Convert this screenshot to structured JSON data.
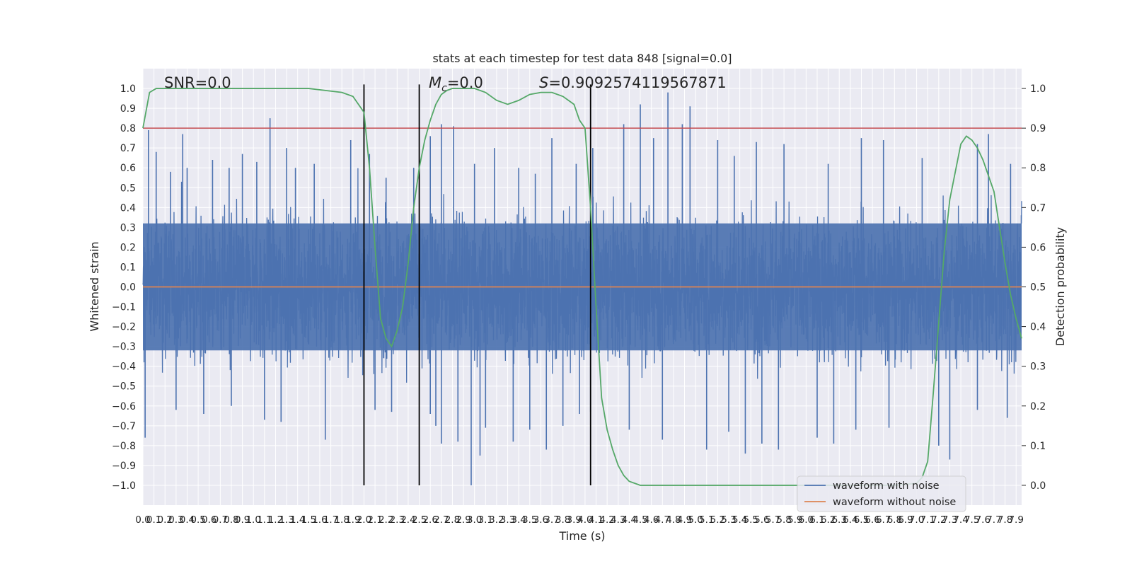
{
  "chart_data": {
    "type": "line",
    "title": "stats at each timestep for test data 848 [signal=0.0]",
    "xlabel": "Time (s)",
    "ylabel": "Whitened strain",
    "y2label": "Detection probability",
    "xlim": [
      0.0,
      7.95
    ],
    "ylim": [
      -1.1,
      1.1
    ],
    "y2lim": [
      -0.05,
      1.05
    ],
    "x_ticks": [
      "0.0",
      "0.1",
      "0.2",
      "0.3",
      "0.4",
      "0.5",
      "0.6",
      "0.7",
      "0.8",
      "0.9",
      "1.0",
      "1.1",
      "1.2",
      "1.3",
      "1.4",
      "1.5",
      "1.6",
      "1.7",
      "1.8",
      "1.9",
      "2.0",
      "2.1",
      "2.2",
      "2.3",
      "2.4",
      "2.5",
      "2.6",
      "2.7",
      "2.8",
      "2.9",
      "3.0",
      "3.1",
      "3.2",
      "3.3",
      "3.4",
      "3.5",
      "3.6",
      "3.7",
      "3.8",
      "3.9",
      "4.0",
      "4.1",
      "4.2",
      "4.3",
      "4.4",
      "4.5",
      "4.6",
      "4.7",
      "4.8",
      "4.9",
      "5.0",
      "5.1",
      "5.2",
      "5.3",
      "5.4",
      "5.5",
      "5.6",
      "5.7",
      "5.8",
      "5.9",
      "6.0",
      "6.1",
      "6.2",
      "6.3",
      "6.4",
      "6.5",
      "6.6",
      "6.7",
      "6.8",
      "6.9",
      "7.0",
      "7.1",
      "7.2",
      "7.3",
      "7.4",
      "7.5",
      "7.6",
      "7.7",
      "7.8",
      "7.9"
    ],
    "y_ticks": [
      "1.0",
      "0.9",
      "0.8",
      "0.7",
      "0.6",
      "0.5",
      "0.4",
      "0.3",
      "0.2",
      "0.1",
      "0.0",
      "−0.1",
      "−0.2",
      "−0.3",
      "−0.4",
      "−0.5",
      "−0.6",
      "−0.7",
      "−0.8",
      "−0.9",
      "−1.0"
    ],
    "y2_ticks": [
      "1.0",
      "0.9",
      "0.8",
      "0.7",
      "0.6",
      "0.5",
      "0.4",
      "0.3",
      "0.2",
      "0.1",
      "0.0"
    ],
    "annotations": {
      "snr": "SNR=0.0",
      "mc_symbol": "M",
      "mc_sub": "c",
      "mc_value": "=0.0",
      "s_symbol": "S",
      "s_value": "=0.9092574119567871"
    },
    "threshold": 0.9,
    "vlines": [
      2.0,
      2.5,
      4.05
    ],
    "series": [
      {
        "name": "waveform with noise",
        "color": "#4c72b0",
        "axis": "left",
        "summary": {
          "min": -1.0,
          "max": 0.98,
          "typical_range": [
            -0.45,
            0.45
          ]
        },
        "spikes_up": [
          [
            0.05,
            0.79
          ],
          [
            0.12,
            0.68
          ],
          [
            0.25,
            0.58
          ],
          [
            0.36,
            0.77
          ],
          [
            0.4,
            0.6
          ],
          [
            0.63,
            0.64
          ],
          [
            0.78,
            0.6
          ],
          [
            0.9,
            0.67
          ],
          [
            1.03,
            0.63
          ],
          [
            1.15,
            0.85
          ],
          [
            1.3,
            0.7
          ],
          [
            1.38,
            0.6
          ],
          [
            1.55,
            0.62
          ],
          [
            1.88,
            0.74
          ],
          [
            2.05,
            0.67
          ],
          [
            2.2,
            0.55
          ],
          [
            2.45,
            0.6
          ],
          [
            2.6,
            0.76
          ],
          [
            2.7,
            0.82
          ],
          [
            2.81,
            0.81
          ],
          [
            3.0,
            0.62
          ],
          [
            3.18,
            0.7
          ],
          [
            3.4,
            0.6
          ],
          [
            3.55,
            0.57
          ],
          [
            3.7,
            0.75
          ],
          [
            3.92,
            0.62
          ],
          [
            4.07,
            0.7
          ],
          [
            4.35,
            0.82
          ],
          [
            4.5,
            0.92
          ],
          [
            4.62,
            0.75
          ],
          [
            4.75,
            0.98
          ],
          [
            4.88,
            0.82
          ],
          [
            4.95,
            0.91
          ],
          [
            5.2,
            0.74
          ],
          [
            5.35,
            0.66
          ],
          [
            5.55,
            0.73
          ],
          [
            5.8,
            0.72
          ],
          [
            6.2,
            0.62
          ],
          [
            6.5,
            0.75
          ],
          [
            6.7,
            0.74
          ],
          [
            7.05,
            0.65
          ],
          [
            7.55,
            0.72
          ],
          [
            7.65,
            0.77
          ],
          [
            7.85,
            0.62
          ]
        ],
        "spikes_down": [
          [
            0.02,
            -0.76
          ],
          [
            0.3,
            -0.62
          ],
          [
            0.55,
            -0.64
          ],
          [
            0.8,
            -0.6
          ],
          [
            1.1,
            -0.67
          ],
          [
            1.25,
            -0.68
          ],
          [
            1.65,
            -0.77
          ],
          [
            2.1,
            -0.62
          ],
          [
            2.25,
            -0.63
          ],
          [
            2.6,
            -0.64
          ],
          [
            2.65,
            -0.7
          ],
          [
            2.7,
            -0.79
          ],
          [
            2.85,
            -0.78
          ],
          [
            2.97,
            -1.0
          ],
          [
            3.05,
            -0.85
          ],
          [
            3.1,
            -0.71
          ],
          [
            3.35,
            -0.78
          ],
          [
            3.5,
            -0.72
          ],
          [
            3.65,
            -0.82
          ],
          [
            3.8,
            -0.7
          ],
          [
            3.95,
            -0.64
          ],
          [
            4.05,
            -0.63
          ],
          [
            4.4,
            -0.72
          ],
          [
            4.7,
            -0.77
          ],
          [
            5.1,
            -0.82
          ],
          [
            5.3,
            -0.73
          ],
          [
            5.45,
            -0.84
          ],
          [
            5.6,
            -0.79
          ],
          [
            5.75,
            -0.82
          ],
          [
            6.1,
            -0.76
          ],
          [
            6.25,
            -0.79
          ],
          [
            6.45,
            -0.72
          ],
          [
            6.75,
            -0.71
          ],
          [
            7.2,
            -0.8
          ],
          [
            7.3,
            -0.87
          ],
          [
            7.55,
            -0.62
          ],
          [
            7.82,
            -0.66
          ]
        ]
      },
      {
        "name": "waveform without noise",
        "color": "#dd8452",
        "axis": "left",
        "x": [
          0.0,
          7.95
        ],
        "y": [
          0.0,
          0.0
        ]
      },
      {
        "name": "",
        "color": "#55a868",
        "axis": "right",
        "x": [
          0.0,
          0.06,
          0.12,
          0.3,
          0.6,
          1.0,
          1.5,
          1.8,
          1.9,
          1.95,
          2.0,
          2.05,
          2.1,
          2.15,
          2.2,
          2.25,
          2.3,
          2.35,
          2.4,
          2.45,
          2.5,
          2.55,
          2.6,
          2.65,
          2.7,
          2.75,
          2.8,
          2.9,
          3.0,
          3.1,
          3.2,
          3.3,
          3.4,
          3.5,
          3.6,
          3.7,
          3.8,
          3.85,
          3.9,
          3.95,
          4.0,
          4.05,
          4.1,
          4.15,
          4.2,
          4.25,
          4.3,
          4.35,
          4.4,
          4.45,
          4.5,
          4.55,
          4.6,
          4.7,
          5.0,
          5.5,
          6.0,
          6.5,
          6.8,
          7.0,
          7.05,
          7.1,
          7.15,
          7.2,
          7.25,
          7.3,
          7.35,
          7.4,
          7.45,
          7.5,
          7.55,
          7.6,
          7.65,
          7.7,
          7.75,
          7.8,
          7.85,
          7.9,
          7.95
        ],
        "y": [
          0.9,
          0.99,
          1.0,
          1.0,
          1.0,
          1.0,
          1.0,
          0.99,
          0.98,
          0.96,
          0.94,
          0.8,
          0.6,
          0.42,
          0.37,
          0.35,
          0.39,
          0.45,
          0.56,
          0.7,
          0.8,
          0.87,
          0.92,
          0.96,
          0.985,
          0.995,
          1.0,
          1.0,
          1.0,
          0.99,
          0.97,
          0.96,
          0.97,
          0.985,
          0.99,
          0.99,
          0.98,
          0.97,
          0.96,
          0.92,
          0.9,
          0.7,
          0.45,
          0.22,
          0.14,
          0.09,
          0.05,
          0.025,
          0.01,
          0.005,
          0.0,
          0.0,
          0.0,
          0.0,
          0.0,
          0.0,
          0.0,
          0.0,
          0.0,
          0.005,
          0.02,
          0.06,
          0.23,
          0.41,
          0.59,
          0.72,
          0.79,
          0.86,
          0.88,
          0.87,
          0.85,
          0.82,
          0.78,
          0.74,
          0.65,
          0.56,
          0.48,
          0.42,
          0.37
        ]
      }
    ],
    "legend": {
      "location": "lower-right",
      "entries": [
        "waveform with noise",
        "waveform without noise"
      ]
    },
    "grid": true,
    "background": "#eaeaf2"
  }
}
